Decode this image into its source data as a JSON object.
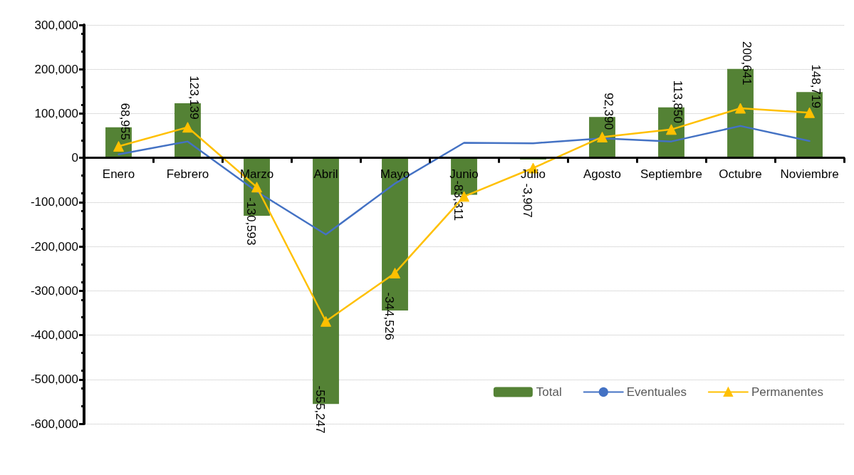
{
  "chart_data": {
    "type": "bar",
    "categories": [
      "Enero",
      "Febrero",
      "Marzo",
      "Abril",
      "Mayo",
      "Junio",
      "Julio",
      "Agosto",
      "Septiembre",
      "Octubre",
      "Noviembre"
    ],
    "series": [
      {
        "name": "Total",
        "color": "#548235",
        "values": [
          68955,
          123139,
          -130593,
          -555247,
          -344526,
          -83311,
          -3907,
          92390,
          113850,
          200641,
          148719
        ],
        "value_labels": [
          "68,955",
          "123,139",
          "-130,593",
          "-555,247",
          "-344,526",
          "-83,311",
          "-3,907",
          "92,390",
          "113,850",
          "200,641",
          "148,719"
        ]
      },
      {
        "name": "Eventuales",
        "type": "line",
        "color": "#4472c4",
        "marker": "none",
        "values": [
          8000,
          37000,
          -76000,
          -173000,
          -58000,
          34000,
          33000,
          44000,
          37000,
          72000,
          38000
        ]
      },
      {
        "name": "Permanentes",
        "type": "line",
        "color": "#ffc000",
        "marker": "triangle",
        "values": [
          26000,
          69000,
          -66000,
          -369000,
          -260000,
          -87000,
          -23000,
          47000,
          64000,
          112000,
          102000
        ]
      }
    ],
    "ylim": [
      -600000,
      300000
    ],
    "yticks": [
      {
        "value": -600000,
        "label": "-600,000"
      },
      {
        "value": -500000,
        "label": "-500,000"
      },
      {
        "value": -400000,
        "label": "-400,000"
      },
      {
        "value": -300000,
        "label": "-300,000"
      },
      {
        "value": -200000,
        "label": "-200,000"
      },
      {
        "value": -100000,
        "label": "-100,000"
      },
      0,
      {
        "value": 100000,
        "label": "100,000"
      },
      {
        "value": 200000,
        "label": "200,000"
      },
      {
        "value": 300000,
        "label": "300,000"
      }
    ],
    "grid": "y",
    "legend": "bottom right",
    "line_style": "solid"
  }
}
